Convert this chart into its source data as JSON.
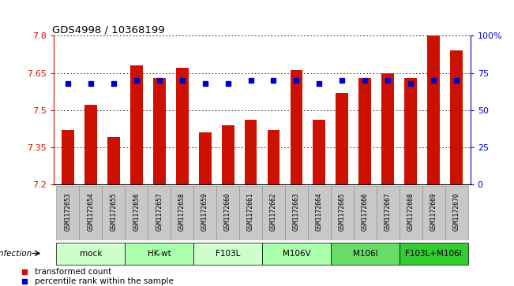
{
  "title": "GDS4998 / 10368199",
  "samples": [
    "GSM1172653",
    "GSM1172654",
    "GSM1172655",
    "GSM1172656",
    "GSM1172657",
    "GSM1172658",
    "GSM1172659",
    "GSM1172660",
    "GSM1172661",
    "GSM1172662",
    "GSM1172663",
    "GSM1172664",
    "GSM1172665",
    "GSM1172666",
    "GSM1172667",
    "GSM1172668",
    "GSM1172669",
    "GSM1172670"
  ],
  "bar_values": [
    7.42,
    7.52,
    7.39,
    7.68,
    7.63,
    7.67,
    7.41,
    7.44,
    7.46,
    7.42,
    7.66,
    7.46,
    7.57,
    7.63,
    7.65,
    7.63,
    7.8,
    7.74
  ],
  "percentile_values": [
    68,
    68,
    68,
    70,
    70,
    70,
    68,
    68,
    70,
    70,
    70,
    68,
    70,
    70,
    70,
    68,
    70,
    70
  ],
  "ymin": 7.2,
  "ymax": 7.8,
  "yticks": [
    7.2,
    7.35,
    7.5,
    7.65,
    7.8
  ],
  "ytick_labels": [
    "7.2",
    "7.35",
    "7.5",
    "7.65",
    "7.8"
  ],
  "right_yticks": [
    0,
    25,
    50,
    75,
    100
  ],
  "right_ytick_labels": [
    "0",
    "25",
    "50",
    "75",
    "100%"
  ],
  "bar_color": "#cc1100",
  "dot_color": "#0000cc",
  "groups": [
    {
      "label": "mock",
      "start": 0,
      "end": 2,
      "color": "#ccffcc"
    },
    {
      "label": "HK-wt",
      "start": 3,
      "end": 5,
      "color": "#aaffaa"
    },
    {
      "label": "F103L",
      "start": 6,
      "end": 8,
      "color": "#ccffcc"
    },
    {
      "label": "M106V",
      "start": 9,
      "end": 11,
      "color": "#aaffaa"
    },
    {
      "label": "M106I",
      "start": 12,
      "end": 14,
      "color": "#66dd66"
    },
    {
      "label": "F103L+M106I",
      "start": 15,
      "end": 17,
      "color": "#33cc33"
    }
  ],
  "legend_red_label": "transformed count",
  "legend_blue_label": "percentile rank within the sample",
  "left_axis_color": "#cc1100",
  "right_axis_color": "#0000cc",
  "bg_color": "#ffffff",
  "bar_width": 0.55,
  "sample_bg_color": "#c8c8c8",
  "sample_border_color": "#888888"
}
